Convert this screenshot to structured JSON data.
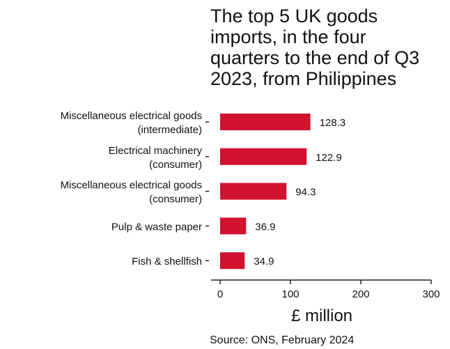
{
  "chart_data": {
    "type": "bar",
    "orientation": "horizontal",
    "title": "The top 5 UK goods imports, in the four quarters to the end of Q3 2023, from Philippines",
    "categories": [
      [
        "Miscellaneous electrical goods",
        "(intermediate)"
      ],
      [
        "Electrical machinery",
        "(consumer)"
      ],
      [
        "Miscellaneous electrical goods",
        "(consumer)"
      ],
      [
        "Pulp & waste paper"
      ],
      [
        "Fish & shellfish"
      ]
    ],
    "values": [
      128.3,
      122.9,
      94.3,
      36.9,
      34.9
    ],
    "value_labels": [
      "128.3",
      "122.9",
      "94.3",
      "36.9",
      "34.9"
    ],
    "xlabel": "£ million",
    "xlim": [
      0,
      300
    ],
    "x_ticks": [
      0,
      100,
      200,
      300
    ],
    "x_tick_labels": [
      "0",
      "100",
      "200",
      "300"
    ],
    "grid": false,
    "bar_color": "#d0122e",
    "source": "Source: ONS, February 2024"
  }
}
